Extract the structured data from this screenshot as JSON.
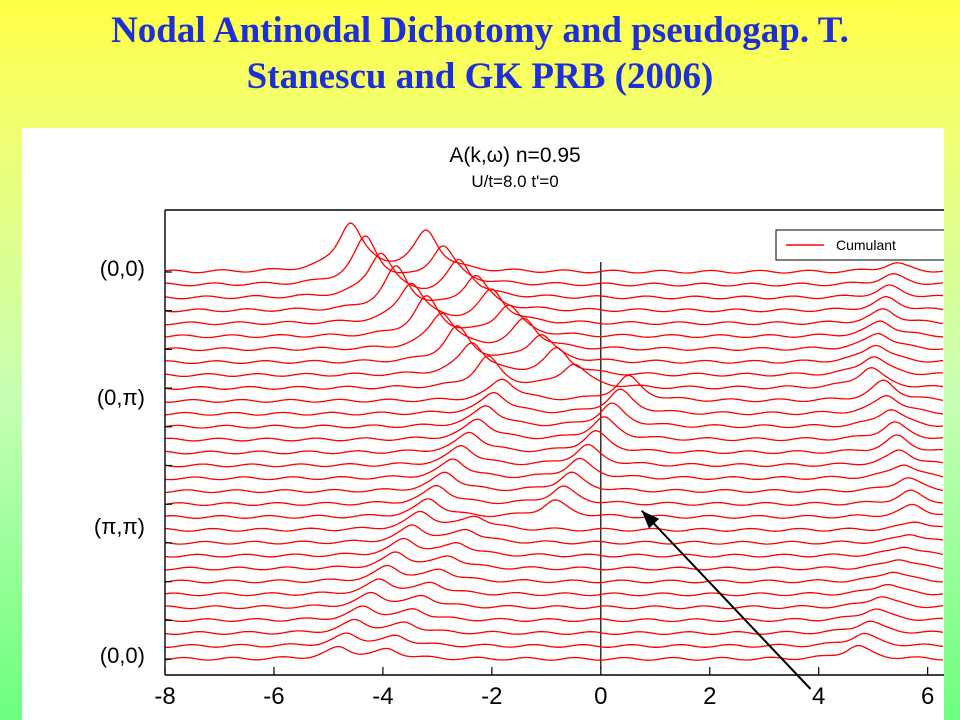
{
  "slide": {
    "title_line1": "Nodal Antinodal Dichotomy and pseudogap. T.",
    "title_line2": "Stanescu and GK  PRB  (2006)"
  },
  "colors": {
    "title": "#1d2fd6",
    "series": "#ff0000",
    "axis": "#000000",
    "arrow": "#000000"
  },
  "chart_data": {
    "type": "line",
    "title": "A(k,ω) n=0.95",
    "subtitle": "U/t=8.0 t'=0",
    "xlabel": "",
    "ylabel": "",
    "xlim": [
      -8,
      6.3
    ],
    "x_ticks": [
      "-8",
      "-6",
      "-4",
      "-2",
      "0",
      "2",
      "4",
      "6"
    ],
    "x_tick_values": [
      -8,
      -6,
      -4,
      -2,
      0,
      2,
      4,
      6
    ],
    "y_labels": [
      "(0,0)",
      "(0,π)",
      "(π,π)",
      "(0,0)"
    ],
    "y_label_positions": [
      0,
      10,
      20,
      30
    ],
    "legend": {
      "entries": [
        "Cumulant"
      ],
      "placement": "top-right"
    },
    "series": [
      {
        "name": "Cumulant",
        "color": "#ff0000",
        "count": 31,
        "offset_step": 1
      }
    ],
    "path_segments": [
      {
        "from": "(0,0)",
        "to": "(0,π)",
        "peaks": [
          {
            "from": {
              "x": -4.6,
              "amp": 2.2
            },
            "to": {
              "x": -1.8,
              "amp": 1.3
            }
          },
          {
            "from": {
              "x": -3.2,
              "amp": 1.8
            },
            "to": {
              "x": -0.2,
              "amp": 1.0
            }
          },
          {
            "from": {
              "x": 5.4,
              "amp": 0.4
            },
            "to": {
              "x": 4.9,
              "amp": 1.0
            }
          }
        ]
      },
      {
        "from": "(0,π)",
        "to": "(π,π)",
        "peaks": [
          {
            "from": {
              "x": -1.8,
              "amp": 1.0
            },
            "to": {
              "x": -3.3,
              "amp": 0.8
            }
          },
          {
            "from": {
              "x": 0.5,
              "amp": 1.1
            },
            "to": {
              "x": -1.0,
              "amp": 0.7
            }
          },
          {
            "from": {
              "x": 5.2,
              "amp": 0.9
            },
            "to": {
              "x": 5.8,
              "amp": 0.5
            }
          }
        ]
      },
      {
        "from": "(π,π)",
        "to": "(0,0)",
        "peaks": [
          {
            "from": {
              "x": -3.3,
              "amp": 0.8
            },
            "to": {
              "x": -4.8,
              "amp": 0.5
            }
          },
          {
            "from": {
              "x": -2.3,
              "amp": 0.6
            },
            "to": {
              "x": -3.9,
              "amp": 0.4
            }
          },
          {
            "from": {
              "x": 5.8,
              "amp": 0.4
            },
            "to": {
              "x": 4.7,
              "amp": 0.6
            }
          }
        ]
      }
    ],
    "annotation_arrow": {
      "from": {
        "x": 3.85,
        "row": -1
      },
      "to": {
        "x": 0.75,
        "row": 18.5
      }
    }
  }
}
